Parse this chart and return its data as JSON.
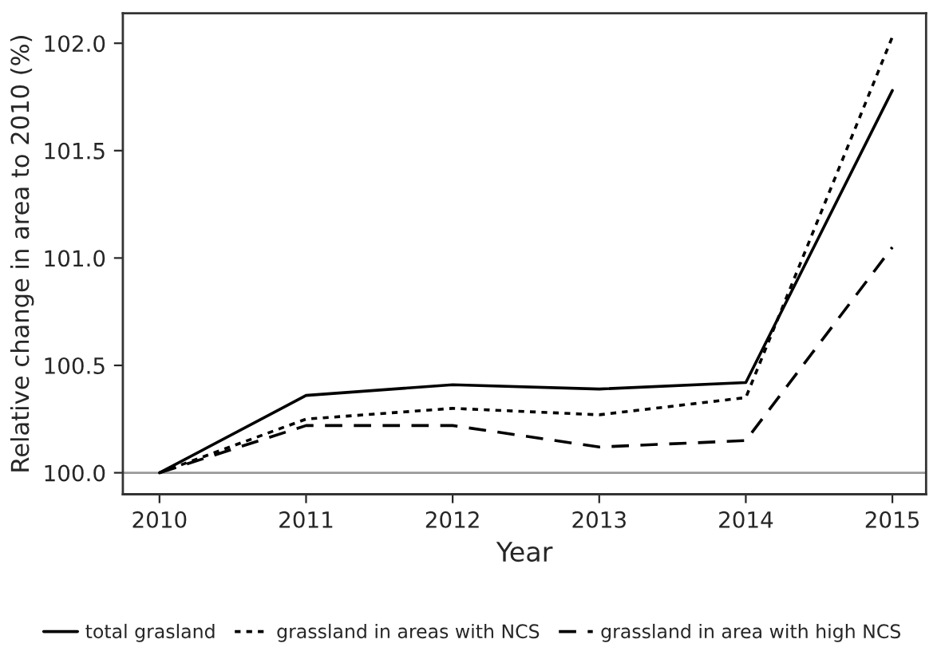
{
  "chart_data": {
    "type": "line",
    "xlabel": "Year",
    "ylabel": "Relative change in area to 2010 (%)",
    "x": [
      2010,
      2011,
      2012,
      2013,
      2014,
      2015
    ],
    "series": [
      {
        "name": "total grasland",
        "color": "#000000",
        "line_style": "solid",
        "values": [
          100.0,
          100.36,
          100.41,
          100.39,
          100.42,
          101.78
        ]
      },
      {
        "name": "grassland in areas with NCS",
        "color": "#000000",
        "line_style": "dotted",
        "values": [
          100.0,
          100.25,
          100.3,
          100.27,
          100.35,
          102.03
        ]
      },
      {
        "name": "grassland in area with high NCS",
        "color": "#000000",
        "line_style": "dashed",
        "values": [
          100.0,
          100.22,
          100.22,
          100.12,
          100.15,
          101.05
        ]
      }
    ],
    "xlim": [
      2009.75,
      2015.23
    ],
    "xticks": [
      2010,
      2011,
      2012,
      2013,
      2014,
      2015
    ],
    "ylim": [
      99.9,
      102.14
    ],
    "yticks": [
      {
        "value": 100.0,
        "label": "100.0"
      },
      {
        "value": 100.5,
        "label": "100.5"
      },
      {
        "value": 101.0,
        "label": "101.0"
      },
      {
        "value": 101.5,
        "label": "101.5"
      },
      {
        "value": 102.0,
        "label": "102.0"
      }
    ],
    "ref_lines": [
      {
        "axis": "y",
        "value": 100.0,
        "color": "#999999"
      }
    ],
    "grid": false,
    "legend": "bottom",
    "marker": "none"
  }
}
